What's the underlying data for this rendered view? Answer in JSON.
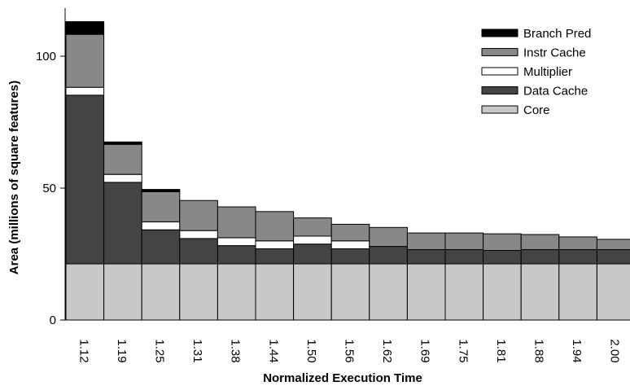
{
  "chart_data": {
    "type": "bar",
    "stacked": true,
    "title": "",
    "xlabel": "Normalized Execution Time",
    "ylabel": "Area (millions of square features)",
    "ylim": [
      0,
      120
    ],
    "yticks": [
      0,
      50,
      100
    ],
    "categories": [
      "1.12",
      "1.19",
      "1.25",
      "1.31",
      "1.38",
      "1.44",
      "1.50",
      "1.56",
      "1.62",
      "1.69",
      "1.75",
      "1.81",
      "1.88",
      "1.94",
      "2.00"
    ],
    "series": [
      {
        "name": "Core",
        "color": "#c8c8c8",
        "values": [
          21.3,
          21.3,
          21.3,
          21.3,
          21.3,
          21.3,
          21.3,
          21.3,
          21.3,
          21.3,
          21.3,
          21.3,
          21.3,
          21.3,
          21.3
        ]
      },
      {
        "name": "Data Cache",
        "color": "#444444",
        "values": [
          63.9,
          30.9,
          12.9,
          9.6,
          6.9,
          5.7,
          7.5,
          5.7,
          6.6,
          5.4,
          5.4,
          5.1,
          5.4,
          5.4,
          5.4
        ]
      },
      {
        "name": "Multiplier",
        "color": "#ffffff",
        "values": [
          3.0,
          3.0,
          3.0,
          3.0,
          3.0,
          3.0,
          3.0,
          3.0,
          0,
          0,
          0,
          0,
          0,
          0,
          0
        ]
      },
      {
        "name": "Instr Cache",
        "color": "#888888",
        "values": [
          20.1,
          11.4,
          11.4,
          11.4,
          11.7,
          11.1,
          6.9,
          6.3,
          7.2,
          6.3,
          6.3,
          6.3,
          5.7,
          4.8,
          3.9
        ]
      },
      {
        "name": "Branch Pred",
        "color": "#000000",
        "values": [
          4.8,
          0.9,
          0.9,
          0,
          0,
          0,
          0,
          0,
          0,
          0,
          0,
          0,
          0,
          0,
          0
        ]
      }
    ],
    "legend_position": "top-right",
    "grid": false
  }
}
